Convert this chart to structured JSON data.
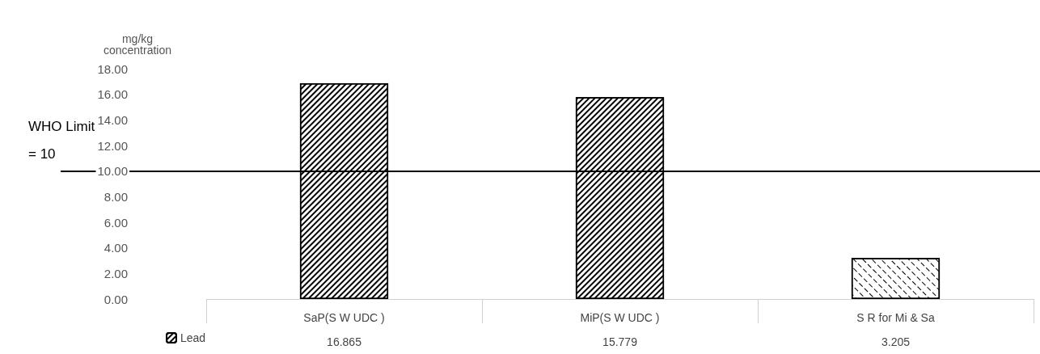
{
  "chart_data": {
    "type": "bar",
    "ylabel": "mg/kg\nconcentration",
    "categories": [
      "SaP(S W UDC )",
      "MiP(S W UDC )",
      "S R for Mi & Sa"
    ],
    "series": [
      {
        "name": "Lead",
        "color": "#ffffff",
        "values": [
          16.865,
          15.779,
          3.205
        ]
      }
    ],
    "ylim": [
      0,
      18
    ],
    "yticks": [
      {
        "value": 0,
        "label": "0.00"
      },
      {
        "value": 2,
        "label": "2.00"
      },
      {
        "value": 4,
        "label": "4.00"
      },
      {
        "value": 6,
        "label": "6.00"
      },
      {
        "value": 8,
        "label": "8.00"
      },
      {
        "value": 10,
        "label": "10.00"
      },
      {
        "value": 12,
        "label": "12.00"
      },
      {
        "value": 14,
        "label": "14.00"
      },
      {
        "value": 16,
        "label": "16.00"
      },
      {
        "value": 18,
        "label": "18.00"
      }
    ],
    "ref_lines": [
      {
        "axis": "y",
        "value": 10,
        "label": "WHO Limit\n= 10",
        "color": "#000000"
      }
    ],
    "data_labels": true,
    "grid": false,
    "legend": "bottom left"
  }
}
